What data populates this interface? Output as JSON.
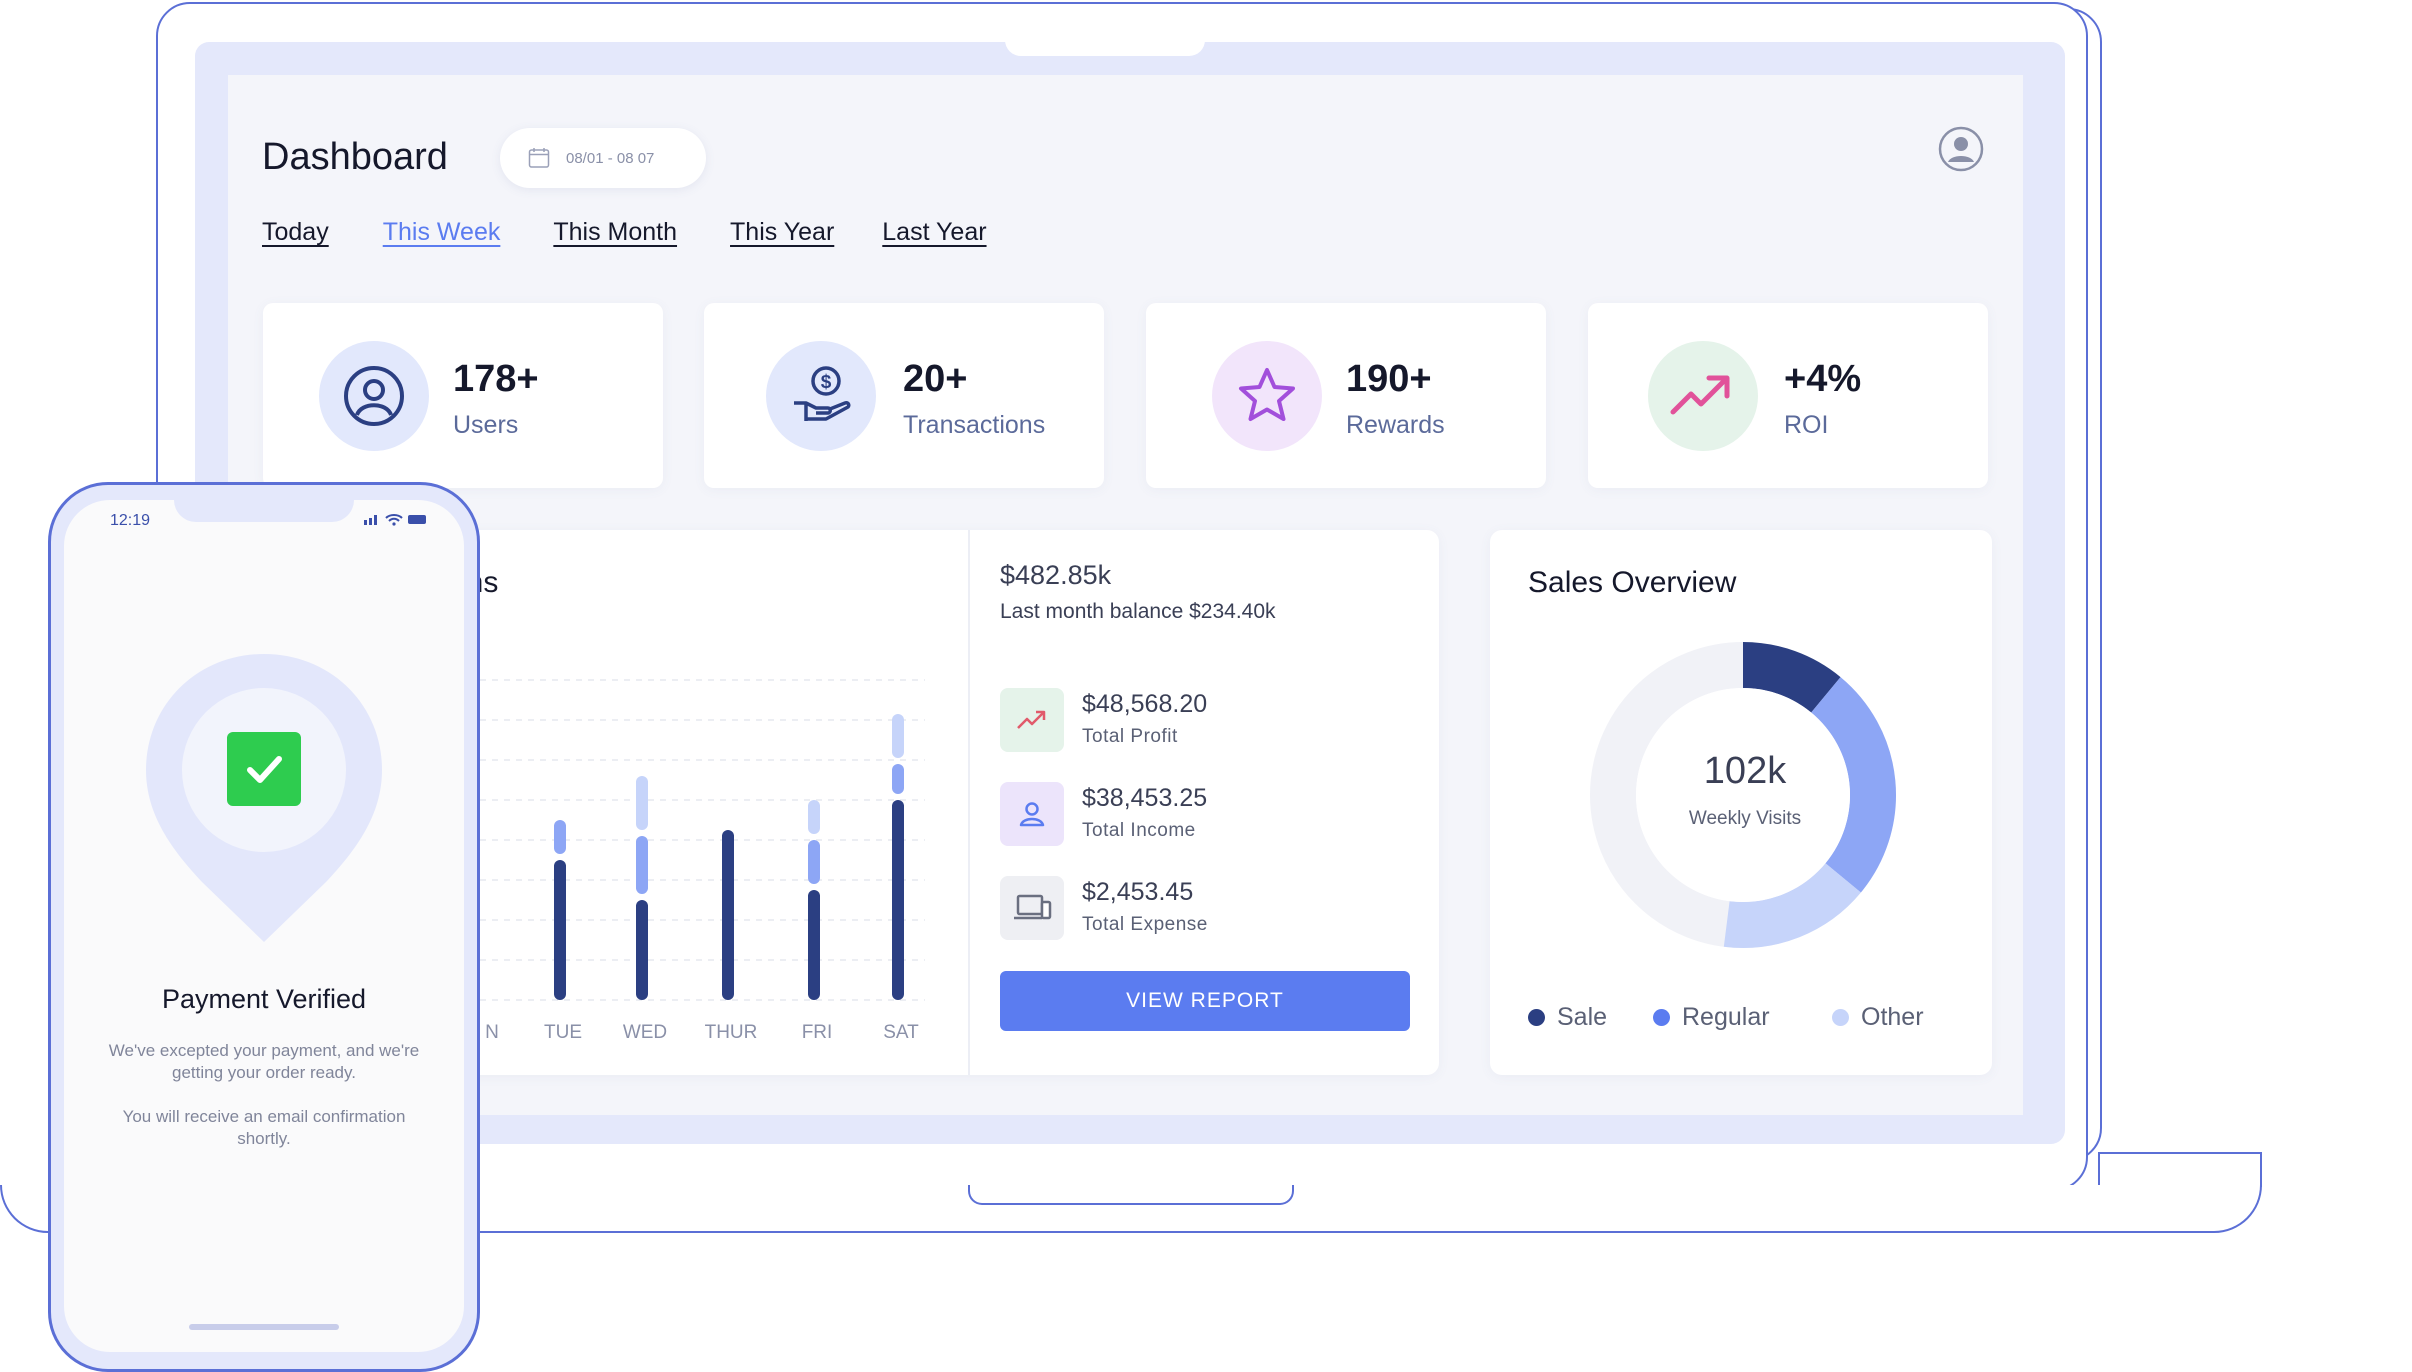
{
  "colors": {
    "accent": "#5b7cf0",
    "navy": "#2b3f82",
    "mid_blue": "#8da6f5",
    "light_blue": "#c6d4fa",
    "outline": "#5b6fd6",
    "success": "#2ecc4f"
  },
  "dashboard": {
    "title": "Dashboard",
    "date_range": "08/01 - 08 07",
    "calendar_icon": "calendar-icon",
    "avatar_icon": "user-circle-icon",
    "tabs": [
      {
        "label": "Today",
        "active": false
      },
      {
        "label": "This Week",
        "active": true
      },
      {
        "label": "This Month",
        "active": false
      },
      {
        "label": "This Year",
        "active": false
      },
      {
        "label": "Last Year",
        "active": false
      }
    ]
  },
  "stats": [
    {
      "value": "178+",
      "label": "Users",
      "icon": "user-icon"
    },
    {
      "value": "20+",
      "label": "Transactions",
      "icon": "hand-coin-icon"
    },
    {
      "value": "190+",
      "label": "Rewards",
      "icon": "star-icon"
    },
    {
      "value": "+4%",
      "label": "ROI",
      "icon": "trend-up-icon"
    }
  ],
  "transactions": {
    "title_visible": "ctions",
    "balance": "$482.85k",
    "last_month": "Last month balance $234.40k",
    "rows": [
      {
        "amount": "$48,568.20",
        "label": "Total Profit",
        "icon": "trend-up-icon"
      },
      {
        "amount": "$38,453.25",
        "label": "Total Income",
        "icon": "person-icon"
      },
      {
        "amount": "$2,453.45",
        "label": "Total Expense",
        "icon": "devices-icon"
      }
    ],
    "button_label": "VIEW REPORT"
  },
  "chart_data": {
    "type": "bar",
    "stacked": true,
    "categories": [
      "N",
      "TUE",
      "WED",
      "THUR",
      "FRI",
      "SAT"
    ],
    "series": [
      {
        "color": "#2b3f82",
        "values": [
          null,
          70,
          50,
          85,
          55,
          100
        ]
      },
      {
        "color": "#8da6f5",
        "values": [
          null,
          20,
          32,
          0,
          25,
          18
        ]
      },
      {
        "color": "#c6d4fa",
        "values": [
          null,
          0,
          30,
          0,
          20,
          25
        ]
      }
    ],
    "ylim": [
      0,
      160
    ],
    "grid": true
  },
  "sales": {
    "title": "Sales Overview",
    "center_value": "102k",
    "center_label": "Weekly Visits",
    "legend": [
      {
        "label": "Sale",
        "color": "#2b3f82"
      },
      {
        "label": "Regular",
        "color": "#5b7cf0"
      },
      {
        "label": "Other",
        "color": "#c6d4fa"
      }
    ],
    "segments": [
      {
        "name": "Sale",
        "fraction": 0.11,
        "color": "#2b3f82"
      },
      {
        "name": "Regular",
        "fraction": 0.25,
        "color": "#8da6f5"
      },
      {
        "name": "Other",
        "fraction": 0.16,
        "color": "#c6d4fa"
      },
      {
        "name": "rest",
        "fraction": 0.48,
        "color": "#f1f2f7"
      }
    ]
  },
  "phone": {
    "time": "12:19",
    "title": "Payment Verified",
    "message1": "We've excepted your payment, and we're getting your order ready.",
    "message2": "You will receive an email confirmation shortly.",
    "badge_icon": "check-icon"
  }
}
